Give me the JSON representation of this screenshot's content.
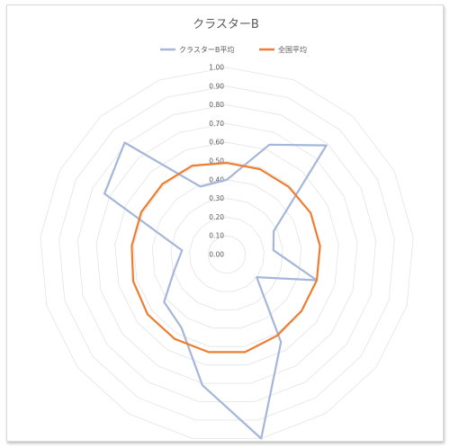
{
  "chart_data": {
    "type": "radar",
    "title": "クラスターB",
    "legend_position": "top",
    "grid": true,
    "rlim": [
      0,
      1
    ],
    "r_ticks": [
      "0.00",
      "0.10",
      "0.20",
      "0.30",
      "0.40",
      "0.50",
      "0.60",
      "0.70",
      "0.80",
      "0.90",
      "1.00"
    ],
    "num_axes": 17,
    "series": [
      {
        "name": "クラスターB平均",
        "color": "#a5b6d8",
        "values": [
          0.4,
          0.63,
          0.79,
          0.28,
          0.25,
          0.5,
          0.2,
          0.55,
          1.0,
          0.71,
          0.46,
          0.42,
          0.29,
          0.24,
          0.73,
          0.81,
          0.39
        ]
      },
      {
        "name": "全国平均",
        "color": "#ed7d31",
        "values": [
          0.49,
          0.49,
          0.49,
          0.5,
          0.5,
          0.5,
          0.5,
          0.51,
          0.53,
          0.53,
          0.53,
          0.53,
          0.52,
          0.51,
          0.51,
          0.51,
          0.51
        ]
      }
    ]
  }
}
